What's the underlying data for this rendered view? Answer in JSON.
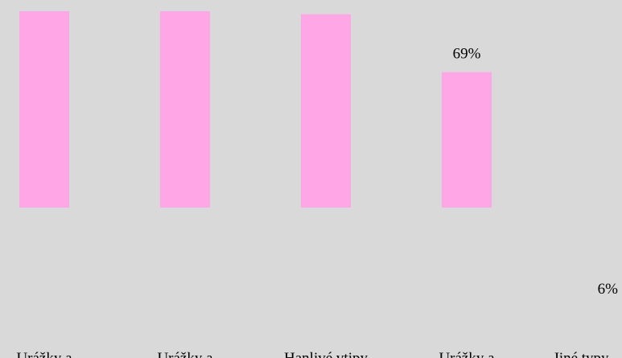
{
  "chart_data": {
    "type": "bar",
    "categories": [
      "Urážky a",
      "Urážky a",
      "Hanlivé vtipy",
      "Urážky a",
      "Jiné typy"
    ],
    "values": [
      100,
      100,
      98.5,
      69,
      6
    ],
    "value_labels": [
      "",
      "",
      "",
      "69%",
      "6%"
    ],
    "unit": "%",
    "title": "",
    "xlabel": "",
    "ylabel": "",
    "ylim": [
      0,
      100
    ],
    "grid": false,
    "legend": "none",
    "colors": {
      "bar": "#ffa6e6",
      "background": "#d9d9d9",
      "text": "#000000"
    }
  }
}
